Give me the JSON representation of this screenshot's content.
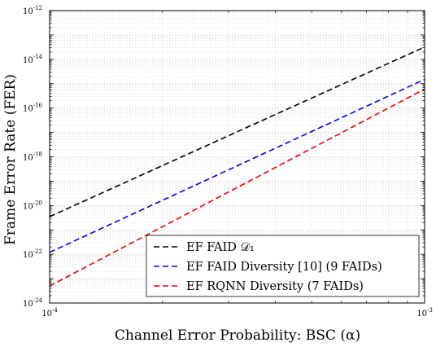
{
  "chart_data": {
    "type": "line",
    "title": "",
    "xlabel": "Channel Error Probability: BSC (α)",
    "ylabel": "Frame Error Rate (FER)",
    "xscale": "log",
    "yscale": "log",
    "xlim": [
      0.0001,
      0.001
    ],
    "ylim": [
      1e-24,
      1e-12
    ],
    "grid": true,
    "legend_position": "bottom-right",
    "x_ticks": [
      {
        "base": "10",
        "exp": "-4",
        "value": 0.0001
      },
      {
        "base": "10",
        "exp": "-3",
        "value": 0.001
      }
    ],
    "y_ticks": [
      {
        "base": "10",
        "exp": "-24",
        "value": 1e-24
      },
      {
        "base": "10",
        "exp": "-22",
        "value": 1e-22
      },
      {
        "base": "10",
        "exp": "-20",
        "value": 1e-20
      },
      {
        "base": "10",
        "exp": "-18",
        "value": 1e-18
      },
      {
        "base": "10",
        "exp": "-16",
        "value": 1e-16
      },
      {
        "base": "10",
        "exp": "-14",
        "value": 1e-14
      },
      {
        "base": "10",
        "exp": "-12",
        "value": 1e-12
      }
    ],
    "series": [
      {
        "name": "EF FAID 𝒟₁",
        "color": "#000000",
        "style": "dashed",
        "x": [
          0.0001,
          0.001
        ],
        "y": [
          3.5e-21,
          3.2e-14
        ]
      },
      {
        "name": "EF FAID Diversity [10] (9 FAIDs)",
        "color": "#0000ee",
        "style": "dashed",
        "x": [
          0.0001,
          0.001
        ],
        "y": [
          1.2e-22,
          1.5e-15
        ]
      },
      {
        "name": "EF RQNN Diversity (7 FAIDs)",
        "color": "#ee0000",
        "style": "dashed",
        "x": [
          0.0001,
          0.001
        ],
        "y": [
          5e-24,
          6e-16
        ]
      }
    ]
  }
}
